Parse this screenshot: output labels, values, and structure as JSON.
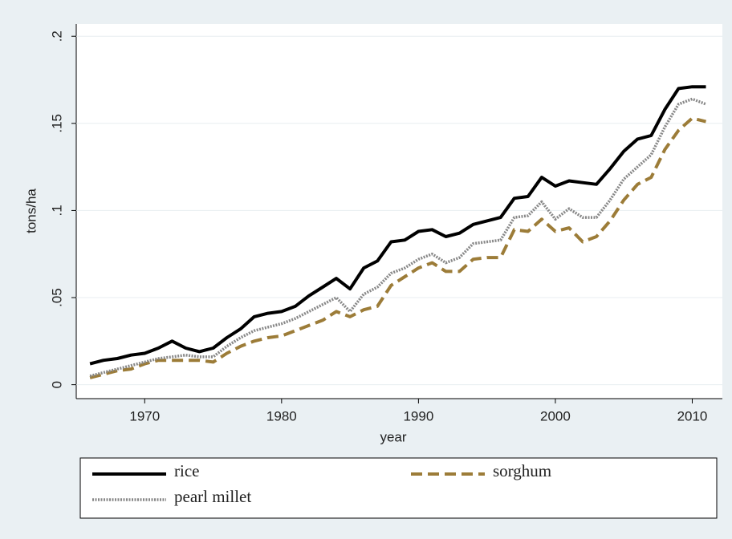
{
  "chart_data": {
    "type": "line",
    "x_label": "year",
    "y_label": "tons/ha",
    "x": [
      1966,
      1967,
      1968,
      1969,
      1970,
      1971,
      1972,
      1973,
      1974,
      1975,
      1976,
      1977,
      1978,
      1979,
      1980,
      1981,
      1982,
      1983,
      1984,
      1985,
      1986,
      1987,
      1988,
      1989,
      1990,
      1991,
      1992,
      1993,
      1994,
      1995,
      1996,
      1997,
      1998,
      1999,
      2000,
      2001,
      2002,
      2003,
      2004,
      2005,
      2006,
      2007,
      2008,
      2009,
      2010,
      2011
    ],
    "series": [
      {
        "name": "rice",
        "color": "#000000",
        "style": "solid",
        "values": [
          0.012,
          0.014,
          0.015,
          0.017,
          0.018,
          0.021,
          0.025,
          0.021,
          0.019,
          0.021,
          0.027,
          0.032,
          0.039,
          0.041,
          0.042,
          0.045,
          0.051,
          0.056,
          0.061,
          0.055,
          0.067,
          0.071,
          0.082,
          0.083,
          0.088,
          0.089,
          0.085,
          0.087,
          0.092,
          0.094,
          0.096,
          0.107,
          0.108,
          0.119,
          0.114,
          0.117,
          0.116,
          0.115,
          0.124,
          0.134,
          0.141,
          0.143,
          0.158,
          0.17,
          0.171,
          0.171
        ]
      },
      {
        "name": "sorghum",
        "color": "#9c7c38",
        "style": "dashed",
        "values": [
          0.004,
          0.006,
          0.008,
          0.009,
          0.012,
          0.014,
          0.014,
          0.014,
          0.014,
          0.013,
          0.018,
          0.022,
          0.025,
          0.027,
          0.028,
          0.031,
          0.034,
          0.037,
          0.042,
          0.039,
          0.043,
          0.045,
          0.057,
          0.062,
          0.067,
          0.07,
          0.065,
          0.065,
          0.072,
          0.073,
          0.073,
          0.089,
          0.088,
          0.095,
          0.088,
          0.09,
          0.082,
          0.085,
          0.094,
          0.106,
          0.115,
          0.119,
          0.135,
          0.146,
          0.153,
          0.151
        ]
      },
      {
        "name": "pearl millet",
        "color": "#888888",
        "style": "dotted",
        "values": [
          0.005,
          0.007,
          0.009,
          0.011,
          0.013,
          0.015,
          0.016,
          0.017,
          0.016,
          0.016,
          0.022,
          0.027,
          0.031,
          0.033,
          0.035,
          0.038,
          0.042,
          0.046,
          0.05,
          0.042,
          0.052,
          0.056,
          0.064,
          0.067,
          0.072,
          0.075,
          0.07,
          0.073,
          0.081,
          0.082,
          0.083,
          0.096,
          0.097,
          0.105,
          0.095,
          0.101,
          0.096,
          0.096,
          0.106,
          0.118,
          0.125,
          0.132,
          0.148,
          0.161,
          0.164,
          0.161
        ]
      }
    ],
    "xlim": [
      1965,
      2012.2
    ],
    "xticks": [
      1970,
      1980,
      1990,
      2000,
      2010
    ],
    "ylim": [
      -0.008,
      0.207
    ],
    "yticks": [
      0,
      {
        "value": 0.05,
        "label": ".05"
      },
      {
        "value": 0.1,
        "label": ".1"
      },
      {
        "value": 0.15,
        "label": ".15"
      },
      {
        "value": 0.2,
        "label": ".2"
      }
    ],
    "grid": true,
    "legend": "bottom"
  }
}
